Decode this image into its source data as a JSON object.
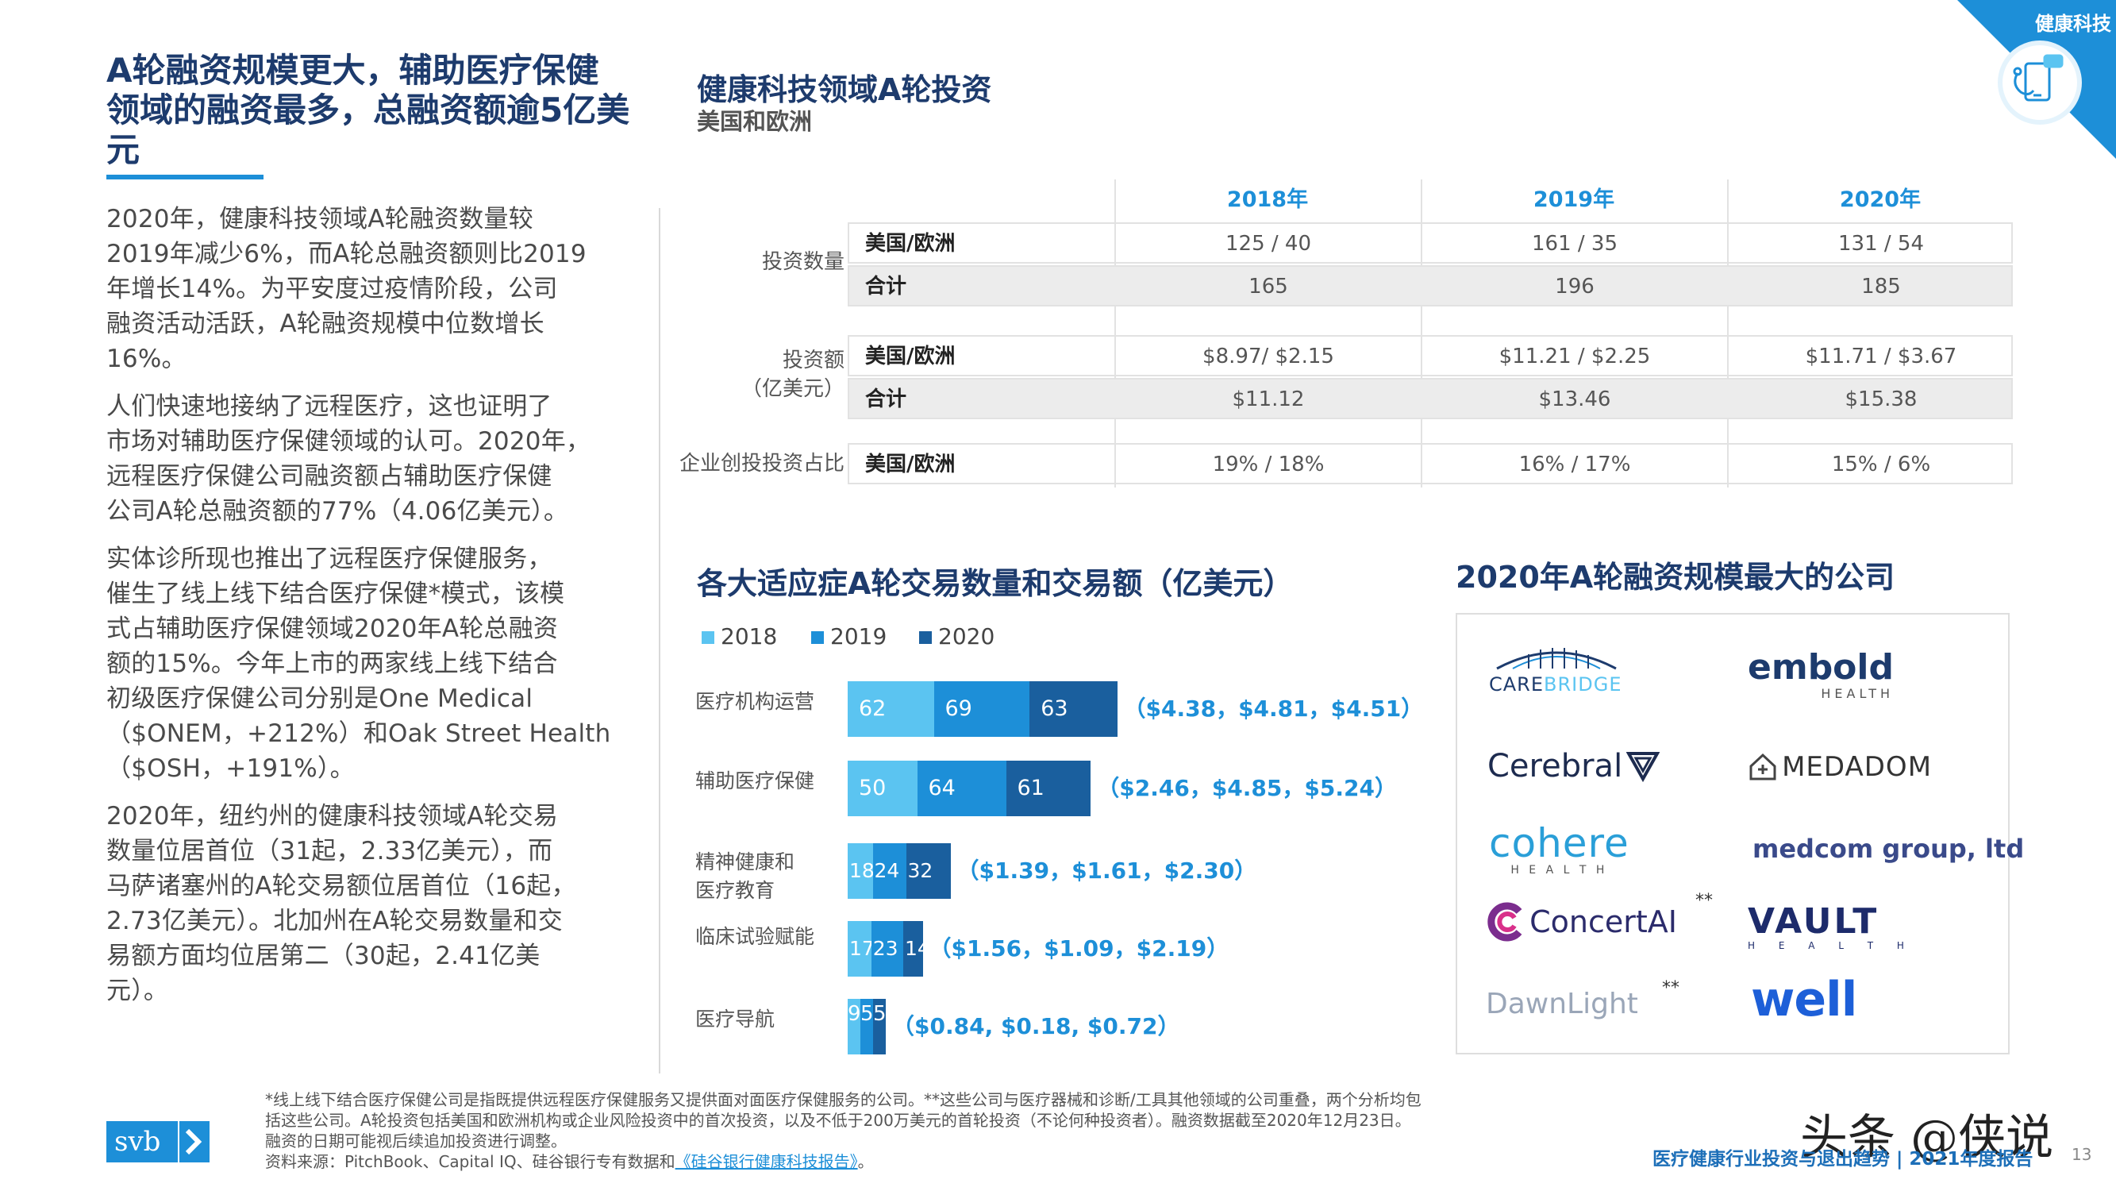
{
  "headline": "A轮融资规模更大，辅助医疗保健领域的融资最多，总融资额逾5亿美元",
  "paragraphs": [
    "2020年，健康科技领域A轮融资数量较\n2019年减少6%，而A轮总融资额则比2019\n年增长14%。为平安度过疫情阶段，公司\n融资活动活跃，A轮融资规模中位数增长\n16%。",
    "人们快速地接纳了远程医疗，这也证明了\n市场对辅助医疗保健领域的认可。2020年，\n远程医疗保健公司融资额占辅助医疗保健\n公司A轮总融资额的77%（4.06亿美元）。",
    "实体诊所现也推出了远程医疗保健服务，\n催生了线上线下结合医疗保健*模式，该模\n式占辅助医疗保健领域2020年A轮总融资\n额的15%。今年上市的两家线上线下结合\n初级医疗保健公司分别是One Medical\n（$ONEM，+212%）和Oak Street Health\n（$OSH，+191%）。",
    "2020年，纽约州的健康科技领域A轮交易\n数量位居首位（31起，2.33亿美元），而\n马萨诸塞州的A轮交易额位居首位（16起，\n2.73亿美元）。北加州在A轮交易数量和交\n易额方面均位居第二（30起，2.41亿美\n元）。"
  ],
  "table": {
    "title": "健康科技领域A轮投资",
    "subtitle": "美国和欧洲",
    "years": [
      "2018年",
      "2019年",
      "2020年"
    ],
    "groups": [
      {
        "label": "投资数量",
        "rows": [
          {
            "label": "美国/欧洲",
            "values": [
              "125 / 40",
              "161 / 35",
              "131 / 54"
            ]
          },
          {
            "label": "合计",
            "values": [
              "165",
              "196",
              "185"
            ]
          }
        ]
      },
      {
        "label": "投资额\n（亿美元）",
        "rows": [
          {
            "label": "美国/欧洲",
            "values": [
              "$8.97/ $2.15",
              "$11.21 / $2.25",
              "$11.71 / $3.67"
            ]
          },
          {
            "label": "合计",
            "values": [
              "$11.12",
              "$13.46",
              "$15.38"
            ]
          }
        ]
      },
      {
        "label": "企业创投投资占比",
        "rows": [
          {
            "label": "美国/欧洲",
            "values": [
              "19% / 18%",
              "16% / 17%",
              "15% / 6%"
            ]
          }
        ]
      }
    ]
  },
  "chart_data": {
    "type": "bar",
    "title": "各大适应症A轮交易数量和交易额（亿美元）",
    "stacked": true,
    "orientation": "horizontal",
    "categories": [
      "医疗机构运营",
      "辅助医疗保健",
      "精神健康和\n医疗教育",
      "临床试验赋能",
      "医疗导航"
    ],
    "series": [
      {
        "name": "2018",
        "values": [
          62,
          50,
          18,
          17,
          9
        ],
        "color": "#5bc4f1"
      },
      {
        "name": "2019",
        "values": [
          69,
          64,
          24,
          23,
          5
        ],
        "color": "#1d8fd8"
      },
      {
        "name": "2020",
        "values": [
          63,
          61,
          32,
          14,
          5
        ],
        "color": "#1a5f9e"
      }
    ],
    "amount_labels": [
      "（$4.38，$4.81，$4.51）",
      "（$2.46，$4.85，$5.24）",
      "（$1.39，$1.61，$2.30）",
      "（$1.56，$1.09，$2.19）",
      "（$0.84, $0.18, $0.72）"
    ]
  },
  "companies": {
    "title": "2020年A轮融资规模最大的公司",
    "logos": [
      {
        "main": "CARE",
        "accent": "BRIDGE"
      },
      {
        "main": "embold",
        "sub": "HEALTH"
      },
      {
        "main": "Cerebral"
      },
      {
        "main": "MEDADOM"
      },
      {
        "main": "cohere",
        "sub": "H E A L T H"
      },
      {
        "main": "medcom group, ltd"
      },
      {
        "main": "ConcertAI",
        "mark": "**"
      },
      {
        "main": "VAULT",
        "sub": "H E A L T H"
      },
      {
        "main": "DawnLight",
        "mark": "**"
      },
      {
        "main": "well"
      }
    ]
  },
  "footnote": {
    "text": "*线上线下结合医疗保健公司是指既提供远程医疗保健服务又提供面对面医疗保健服务的公司。**这些公司与医疗器械和诊断/工具其他领域的公司重叠，两个分析均包括这些公司。A轮投资包括美国和欧洲机构或企业风险投资中的首次投资，以及不低于200万美元的首轮投资（不论何种投资者）。融资数据截至2020年12月23日。融资的日期可能视后续追加投资进行调整。",
    "source_prefix": "资料来源：PitchBook、Capital IQ、硅谷银行专有数据和",
    "source_link": "《硅谷银行健康科技报告》",
    "source_suffix": "。"
  },
  "brand": {
    "logo_text": "svb"
  },
  "corner_tag": "健康科技",
  "footer_title": "医疗健康行业投资与退出趋势 | 2021年度报告",
  "page_number": "13",
  "watermark": "头条 @侠说",
  "colors": {
    "navy": "#1d3b6d",
    "blue": "#1d8fd8",
    "light": "#5bc4f1",
    "dark": "#1a5f9e"
  }
}
